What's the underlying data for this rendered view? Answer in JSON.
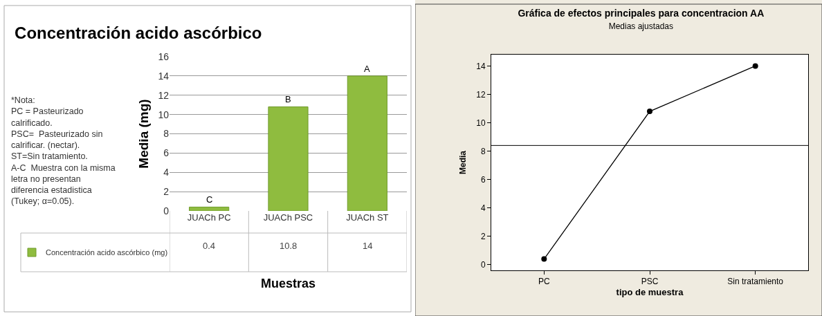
{
  "chart_data": [
    {
      "type": "bar",
      "title": "Concentración acido ascórbico",
      "xlabel": "Muestras",
      "ylabel": "Media (mg)",
      "categories": [
        "JUACh PC",
        "JUACh PSC",
        "JUACh ST"
      ],
      "series": [
        {
          "name": "Concentración acido ascórbico (mg)",
          "color": "#8fbc3f",
          "values": [
            0.4,
            10.8,
            14
          ]
        }
      ],
      "ylim": [
        0,
        16
      ],
      "yticks": [
        0,
        2,
        4,
        6,
        8,
        10,
        12,
        14,
        16
      ],
      "grid": "y",
      "legend": "bottom left",
      "data_labels": true,
      "annotations": [
        "*Nota:",
        "PC = Pasteurizado calrificado.",
        "PSC=  Pasteurizado sin calrificar. (nectar).",
        "ST=Sin tratamiento.",
        "A-C  Muestra con la misma letra no presentan diferencia estadistica (Tukey; α=0.05).",
        {
          "text": "C",
          "x": "JUACh PC",
          "y": 0.4
        },
        {
          "text": "B",
          "x": "JUACh PSC",
          "y": 10.8
        },
        {
          "text": "A",
          "x": "JUACh ST",
          "y": 14
        }
      ]
    },
    {
      "type": "line",
      "title": "Gráfica de efectos principales para concentracion AA",
      "subtitle": "Medias ajustadas",
      "xlabel": "tipo de muestra",
      "ylabel": "Media",
      "categories": [
        "PC",
        "PSC",
        "Sin tratamiento"
      ],
      "series": [
        {
          "color": "#000000",
          "values": [
            0.4,
            10.8,
            14
          ]
        }
      ],
      "marker": "circle",
      "line_style": "solid",
      "ylim": [
        -0.4,
        14.8
      ],
      "yticks": [
        0,
        2,
        4,
        6,
        8,
        10,
        12,
        14
      ],
      "ref_lines": [
        {
          "axis": "y",
          "value": 8.4,
          "color": "#000000"
        }
      ]
    }
  ]
}
